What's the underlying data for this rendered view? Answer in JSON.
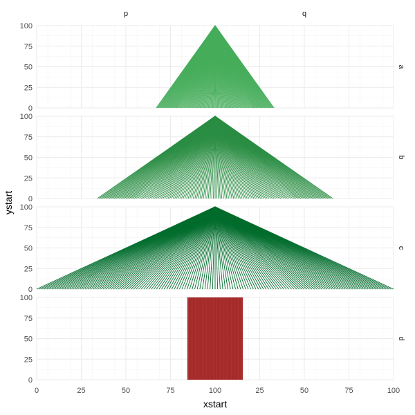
{
  "chart_data": {
    "type": "segment",
    "xlabel": "xstart",
    "ylabel": "ystart",
    "col_facets": [
      "p",
      "q"
    ],
    "row_facets": [
      "a",
      "b",
      "c",
      "d"
    ],
    "col_x_range": [
      [
        0,
        100
      ],
      [
        0,
        100
      ]
    ],
    "col_x_ticks": [
      [
        0,
        25,
        50,
        75,
        100
      ],
      [
        25,
        50,
        75,
        100
      ]
    ],
    "ylim": [
      0,
      100
    ],
    "y_ticks": [
      0,
      25,
      50,
      75,
      100
    ],
    "x_tick_labels": [
      "0",
      "25",
      "50",
      "75",
      "100",
      "25",
      "50",
      "75",
      "100"
    ],
    "y_tick_labels": [
      "0",
      "25",
      "50",
      "75",
      "100"
    ],
    "grid": true,
    "panels": [
      {
        "row": "a",
        "shape": "fan",
        "apex": [
          100,
          100
        ],
        "base_y": 0,
        "base_from": 67,
        "base_to": 133,
        "color": "#46ad5b"
      },
      {
        "row": "b",
        "shape": "fan",
        "apex": [
          100,
          100
        ],
        "base_y": 0,
        "base_from": 34,
        "base_to": 166,
        "color": "#2a8d43"
      },
      {
        "row": "c",
        "shape": "fan",
        "apex": [
          100,
          100
        ],
        "base_y": 0,
        "base_from": 0,
        "base_to": 200,
        "color": "#016c2c"
      },
      {
        "row": "d",
        "shape": "bars",
        "y_from": 0,
        "y_to": 100,
        "x_from": 85,
        "x_to": 115,
        "color": "#a52a2a"
      }
    ]
  }
}
